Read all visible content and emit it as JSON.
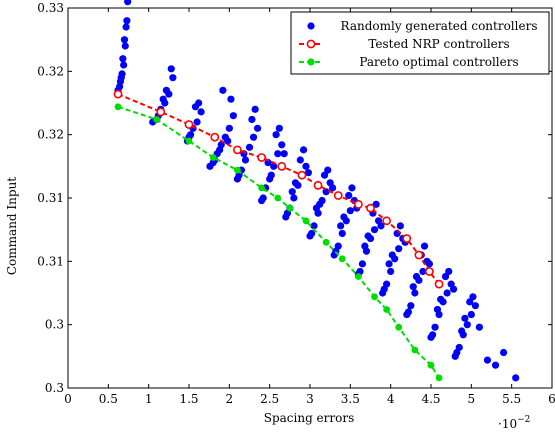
{
  "chart_data": {
    "type": "scatter",
    "xlabel": "Spacing errors",
    "ylabel": "Command Input",
    "x_multiplier_label": "·10",
    "x_multiplier_exp": "−2",
    "xlim": [
      0,
      6
    ],
    "ylim": [
      0.3,
      0.33
    ],
    "x_ticks": [
      0,
      0.5,
      1,
      1.5,
      2,
      2.5,
      3,
      3.5,
      4,
      4.5,
      5,
      5.5,
      6
    ],
    "x_tick_labels": [
      "0",
      "0.5",
      "1",
      "1.5",
      "2",
      "2.5",
      "3",
      "3.5",
      "4",
      "4.5",
      "5",
      "5.5",
      "6"
    ],
    "y_ticks": [
      0.3,
      0.305,
      0.31,
      0.315,
      0.32,
      0.325,
      0.33
    ],
    "y_tick_labels": [
      "0.3",
      "0.3",
      "0.31",
      "0.31",
      "0.32",
      "0.32",
      "0.33"
    ],
    "grid": false,
    "legend_position": "top-right",
    "series": [
      {
        "name": "Randomly generated controllers",
        "color": "#0000ff",
        "marker": "circle",
        "x": [
          0.62,
          0.64,
          0.65,
          0.66,
          0.68,
          0.7,
          0.72,
          0.74,
          0.71,
          0.69,
          0.73,
          0.67,
          1.1,
          1.15,
          1.2,
          1.25,
          1.3,
          1.12,
          1.18,
          1.28,
          1.22,
          1.05,
          1.5,
          1.55,
          1.6,
          1.65,
          1.52,
          1.58,
          1.62,
          1.48,
          1.8,
          1.85,
          1.9,
          1.95,
          2.0,
          2.05,
          1.88,
          1.92,
          1.98,
          1.82,
          2.02,
          1.76,
          2.1,
          2.15,
          2.2,
          2.25,
          2.3,
          2.35,
          2.12,
          2.18,
          2.28,
          2.32,
          2.4,
          2.45,
          2.5,
          2.55,
          2.6,
          2.65,
          2.42,
          2.48,
          2.58,
          2.62,
          2.52,
          2.68,
          2.7,
          2.75,
          2.8,
          2.85,
          2.9,
          2.95,
          2.72,
          2.78,
          2.88,
          2.92,
          2.82,
          2.98,
          3.0,
          3.05,
          3.1,
          3.15,
          3.2,
          3.25,
          3.02,
          3.08,
          3.18,
          3.22,
          3.12,
          3.28,
          3.3,
          3.35,
          3.4,
          3.45,
          3.5,
          3.55,
          3.32,
          3.38,
          3.48,
          3.52,
          3.42,
          3.58,
          3.6,
          3.65,
          3.7,
          3.75,
          3.8,
          3.85,
          3.62,
          3.68,
          3.78,
          3.82,
          3.72,
          3.88,
          3.9,
          3.95,
          4.0,
          4.05,
          4.1,
          4.15,
          3.92,
          3.98,
          4.08,
          4.12,
          4.02,
          4.18,
          4.2,
          4.25,
          4.3,
          4.35,
          4.4,
          4.45,
          4.22,
          4.28,
          4.38,
          4.42,
          4.32,
          4.48,
          4.5,
          4.55,
          4.6,
          4.65,
          4.7,
          4.75,
          4.52,
          4.58,
          4.68,
          4.72,
          4.62,
          4.78,
          4.8,
          4.85,
          4.9,
          4.95,
          5.0,
          5.05,
          4.82,
          4.88,
          4.98,
          5.02,
          4.92,
          5.1,
          5.2,
          5.3,
          5.4,
          5.55
        ],
        "y": [
          0.3235,
          0.3238,
          0.3242,
          0.3245,
          0.326,
          0.3275,
          0.3285,
          0.3305,
          0.327,
          0.3255,
          0.329,
          0.3248,
          0.3212,
          0.322,
          0.3225,
          0.3232,
          0.3245,
          0.3215,
          0.3228,
          0.3252,
          0.3235,
          0.321,
          0.3198,
          0.3205,
          0.321,
          0.3218,
          0.32,
          0.3222,
          0.3225,
          0.3195,
          0.3178,
          0.3185,
          0.3192,
          0.3198,
          0.3205,
          0.3215,
          0.3188,
          0.3235,
          0.3195,
          0.318,
          0.3228,
          0.3175,
          0.3165,
          0.3172,
          0.318,
          0.319,
          0.3198,
          0.3205,
          0.3168,
          0.3185,
          0.3212,
          0.322,
          0.3148,
          0.3158,
          0.3165,
          0.3175,
          0.3185,
          0.3192,
          0.315,
          0.3178,
          0.32,
          0.3205,
          0.3168,
          0.3185,
          0.3135,
          0.3142,
          0.315,
          0.316,
          0.3168,
          0.3175,
          0.3138,
          0.3155,
          0.318,
          0.3188,
          0.3162,
          0.317,
          0.312,
          0.3128,
          0.3138,
          0.3148,
          0.3155,
          0.3162,
          0.3122,
          0.3142,
          0.3168,
          0.3172,
          0.3145,
          0.3158,
          0.3105,
          0.3112,
          0.3122,
          0.3132,
          0.314,
          0.3148,
          0.3108,
          0.3128,
          0.3152,
          0.3158,
          0.3135,
          0.3142,
          0.309,
          0.3098,
          0.3108,
          0.3118,
          0.3125,
          0.3132,
          0.3092,
          0.3112,
          0.3138,
          0.3145,
          0.312,
          0.3128,
          0.3075,
          0.3082,
          0.3092,
          0.3102,
          0.311,
          0.3118,
          0.3078,
          0.3098,
          0.3122,
          0.3128,
          0.3105,
          0.3115,
          0.3058,
          0.3065,
          0.3075,
          0.3085,
          0.3092,
          0.31,
          0.306,
          0.308,
          0.3105,
          0.3112,
          0.3088,
          0.3098,
          0.304,
          0.3048,
          0.3058,
          0.3068,
          0.3075,
          0.3082,
          0.3042,
          0.3062,
          0.3088,
          0.3092,
          0.307,
          0.3078,
          0.3025,
          0.3032,
          0.3042,
          0.305,
          0.3058,
          0.3065,
          0.3028,
          0.3045,
          0.3068,
          0.3072,
          0.3055,
          0.3048,
          0.3022,
          0.3018,
          0.3028,
          0.3008
        ]
      },
      {
        "name": "Tested NRP controllers",
        "color": "#ff0000",
        "marker": "open-circle",
        "line": "dashed",
        "x": [
          0.62,
          1.15,
          1.5,
          1.82,
          2.1,
          2.4,
          2.65,
          2.9,
          3.1,
          3.35,
          3.6,
          3.75,
          3.95,
          4.2,
          4.35,
          4.48,
          4.6
        ],
        "y": [
          0.3232,
          0.3218,
          0.3208,
          0.3198,
          0.3188,
          0.3182,
          0.3175,
          0.3168,
          0.316,
          0.3152,
          0.3145,
          0.3142,
          0.3132,
          0.3118,
          0.3105,
          0.3092,
          0.3082
        ]
      },
      {
        "name": "Pareto optimal controllers",
        "color": "#00dd00",
        "marker": "circle",
        "line": "dashed",
        "x": [
          0.62,
          1.1,
          1.5,
          1.8,
          2.1,
          2.4,
          2.6,
          2.75,
          2.95,
          3.2,
          3.4,
          3.6,
          3.8,
          3.95,
          4.1,
          4.3,
          4.5,
          4.6
        ],
        "y": [
          0.3222,
          0.3212,
          0.3195,
          0.3182,
          0.3172,
          0.3158,
          0.315,
          0.3142,
          0.3132,
          0.3115,
          0.3102,
          0.3088,
          0.3072,
          0.3062,
          0.3048,
          0.303,
          0.3018,
          0.3008
        ]
      }
    ]
  }
}
